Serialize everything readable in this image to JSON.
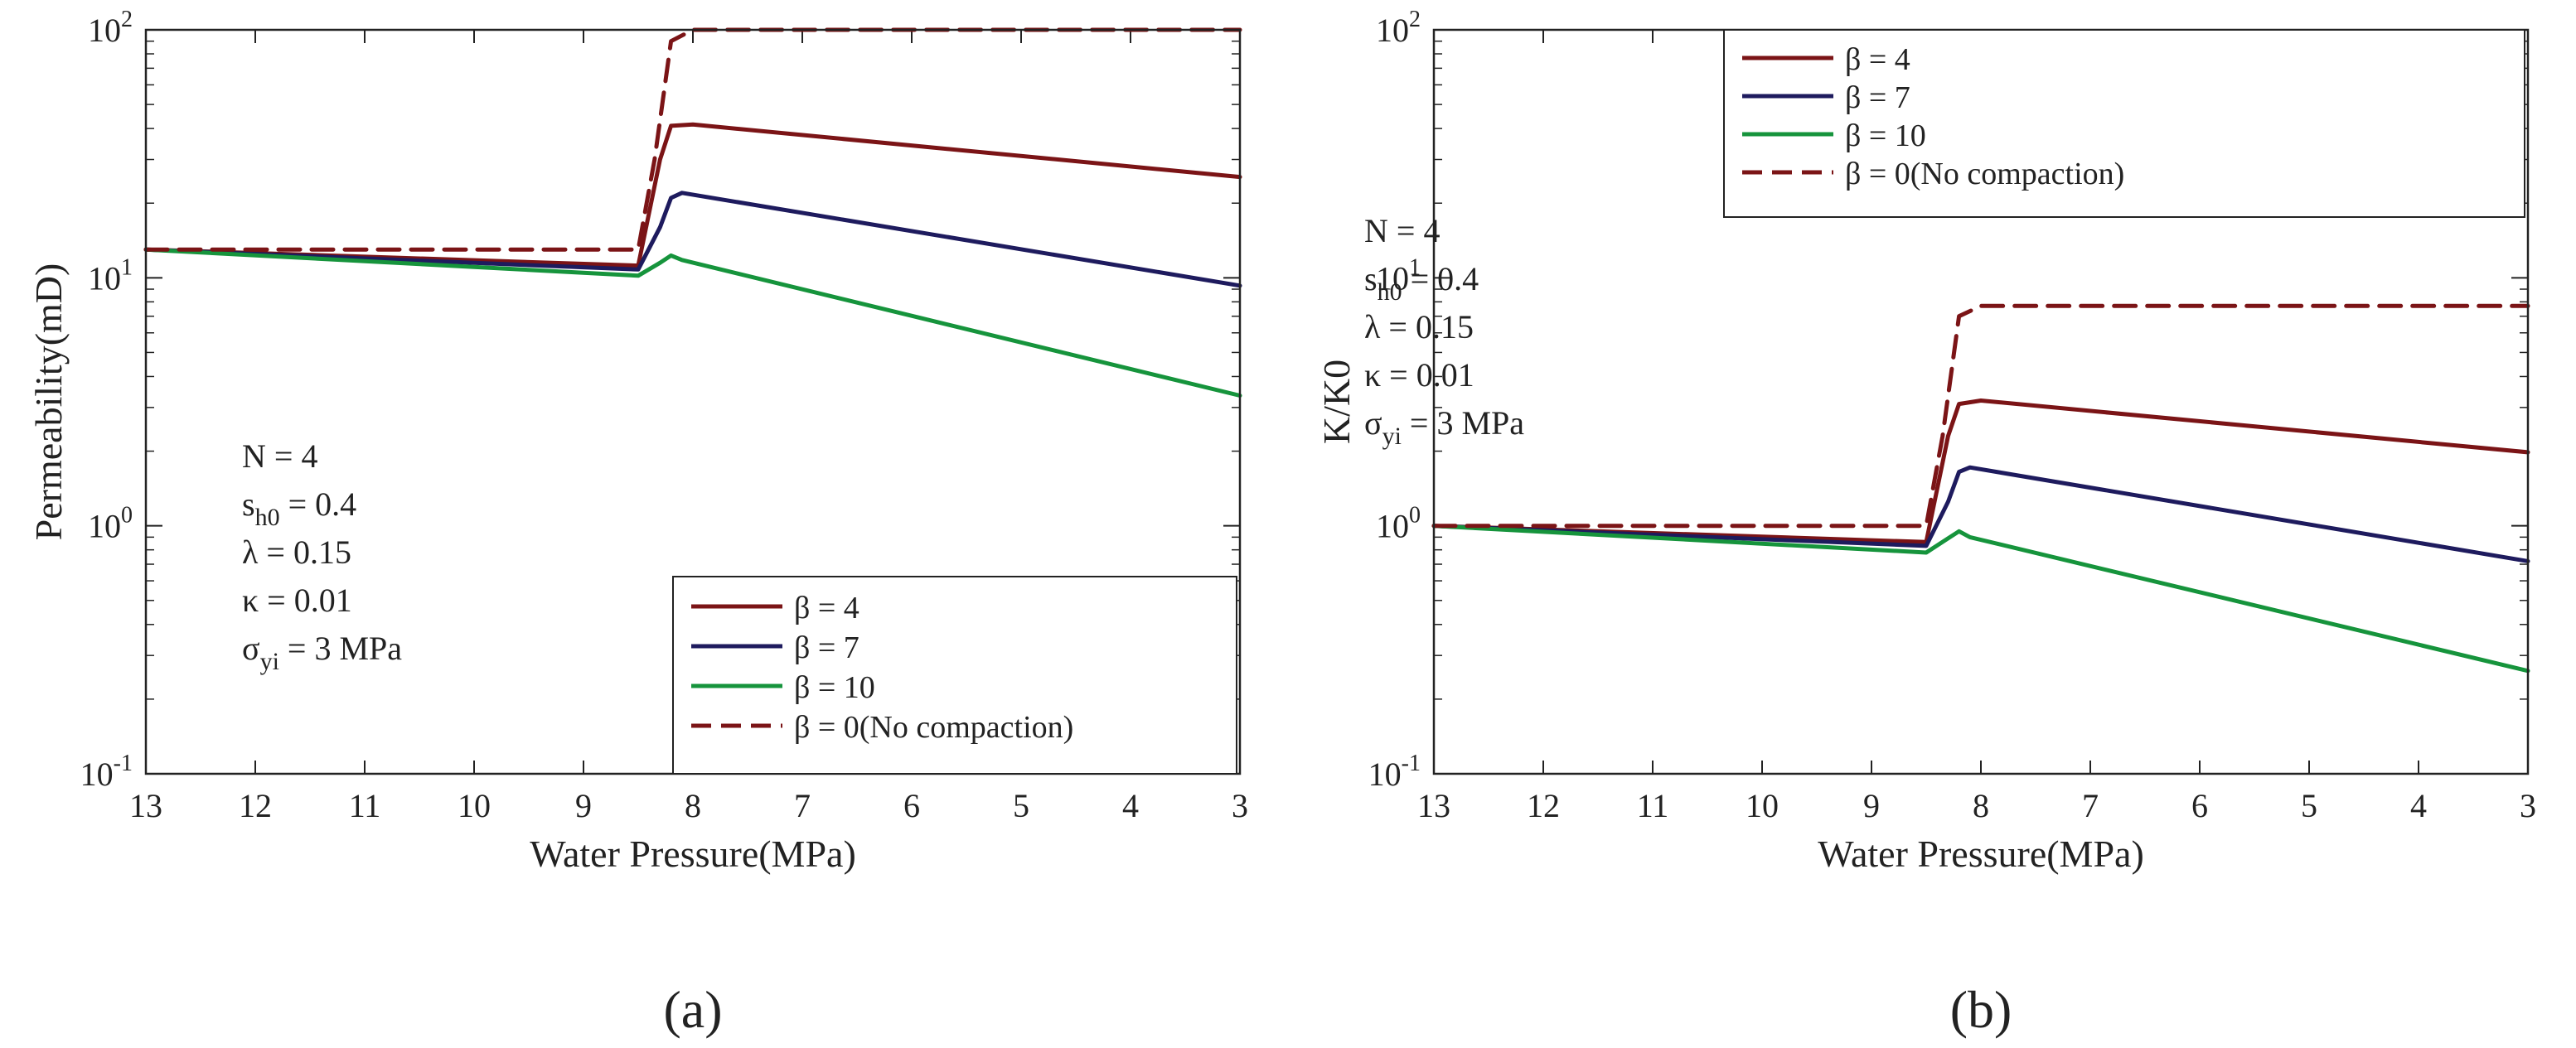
{
  "chart_data": [
    {
      "id": "a",
      "panel_label": "(a)",
      "type": "line",
      "yscale": "log",
      "xlabel": "Water Pressure(MPa)",
      "ylabel": "Permeability(mD)",
      "xlim": [
        13,
        3
      ],
      "ylim": [
        0.1,
        100
      ],
      "x_ticks": [
        "13",
        "12",
        "11",
        "10",
        "9",
        "8",
        "7",
        "6",
        "5",
        "4",
        "3"
      ],
      "y_ticks": [
        {
          "base": "10",
          "exp": "-1",
          "value": 0.1
        },
        {
          "base": "10",
          "exp": "0",
          "value": 1
        },
        {
          "base": "10",
          "exp": "1",
          "value": 10
        },
        {
          "base": "10",
          "exp": "2",
          "value": 100
        }
      ],
      "legend_position": "bottom-right",
      "annotation": [
        {
          "main": "N = 4",
          "sub": "",
          "rest": ""
        },
        {
          "main": "s",
          "sub": "h0",
          "rest": " = 0.4"
        },
        {
          "main": "λ",
          "sub": "",
          "rest": " = 0.15"
        },
        {
          "main": "κ",
          "sub": "",
          "rest": " = 0.01"
        },
        {
          "main": "σ",
          "sub": "yi",
          "rest": " = 3 MPa"
        }
      ],
      "series": [
        {
          "name": "β = 4",
          "color": "#7b1416",
          "dash": false,
          "x": [
            13,
            8.5,
            8.3,
            8.2,
            8.0,
            3
          ],
          "y": [
            13.0,
            11.2,
            30.0,
            41.0,
            41.5,
            25.5
          ]
        },
        {
          "name": "β = 7",
          "color": "#1e1b5e",
          "dash": false,
          "x": [
            13,
            8.5,
            8.3,
            8.2,
            8.1,
            3
          ],
          "y": [
            13.0,
            10.8,
            16.0,
            21.0,
            22.0,
            9.3
          ]
        },
        {
          "name": "β = 10",
          "color": "#16943c",
          "dash": false,
          "x": [
            13,
            8.5,
            8.3,
            8.2,
            8.1,
            3
          ],
          "y": [
            13.0,
            10.2,
            11.5,
            12.3,
            11.8,
            3.35
          ]
        },
        {
          "name": "β = 0(No compaction)",
          "color": "#7b1416",
          "dash": true,
          "x": [
            13,
            8.5,
            8.35,
            8.2,
            8.0,
            3
          ],
          "y": [
            13.0,
            13.0,
            30.0,
            90.0,
            100.0,
            100.0
          ]
        }
      ]
    },
    {
      "id": "b",
      "panel_label": "(b)",
      "type": "line",
      "yscale": "log",
      "xlabel": "Water Pressure(MPa)",
      "ylabel": "K/K0",
      "xlim": [
        13,
        3
      ],
      "ylim": [
        0.1,
        100
      ],
      "x_ticks": [
        "13",
        "12",
        "11",
        "10",
        "9",
        "8",
        "7",
        "6",
        "5",
        "4",
        "3"
      ],
      "y_ticks": [
        {
          "base": "10",
          "exp": "-1",
          "value": 0.1
        },
        {
          "base": "10",
          "exp": "0",
          "value": 1
        },
        {
          "base": "10",
          "exp": "1",
          "value": 10
        },
        {
          "base": "10",
          "exp": "2",
          "value": 100
        }
      ],
      "legend_position": "top-right",
      "annotation": [
        {
          "main": "N = 4",
          "sub": "",
          "rest": ""
        },
        {
          "main": "s",
          "sub": "h0",
          "rest": " = 0.4"
        },
        {
          "main": "λ",
          "sub": "",
          "rest": " = 0.15"
        },
        {
          "main": "κ",
          "sub": "",
          "rest": " = 0.01"
        },
        {
          "main": "σ",
          "sub": "yi",
          "rest": " = 3 MPa"
        }
      ],
      "series": [
        {
          "name": "β = 4",
          "color": "#7b1416",
          "dash": false,
          "x": [
            13,
            8.5,
            8.3,
            8.2,
            8.0,
            3
          ],
          "y": [
            1.0,
            0.86,
            2.3,
            3.1,
            3.2,
            1.98
          ]
        },
        {
          "name": "β = 7",
          "color": "#1e1b5e",
          "dash": false,
          "x": [
            13,
            8.5,
            8.3,
            8.2,
            8.1,
            3
          ],
          "y": [
            1.0,
            0.83,
            1.25,
            1.65,
            1.72,
            0.72
          ]
        },
        {
          "name": "β = 10",
          "color": "#16943c",
          "dash": false,
          "x": [
            13,
            8.5,
            8.3,
            8.2,
            8.1,
            3
          ],
          "y": [
            1.0,
            0.78,
            0.89,
            0.95,
            0.9,
            0.26
          ]
        },
        {
          "name": "β = 0(No compaction)",
          "color": "#7b1416",
          "dash": true,
          "x": [
            13,
            8.5,
            8.35,
            8.2,
            8.0,
            3
          ],
          "y": [
            1.0,
            1.0,
            2.3,
            7.0,
            7.7,
            7.7
          ]
        }
      ]
    }
  ]
}
